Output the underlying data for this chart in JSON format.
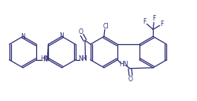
{
  "bg_color": "#ffffff",
  "line_color": "#2d2d7a",
  "text_color": "#2d2d7a",
  "figsize": [
    2.51,
    1.28
  ],
  "dpi": 100,
  "lw": 0.9,
  "fs": 5.5,
  "xlim": [
    0,
    25.1
  ],
  "ylim": [
    0,
    12.8
  ]
}
